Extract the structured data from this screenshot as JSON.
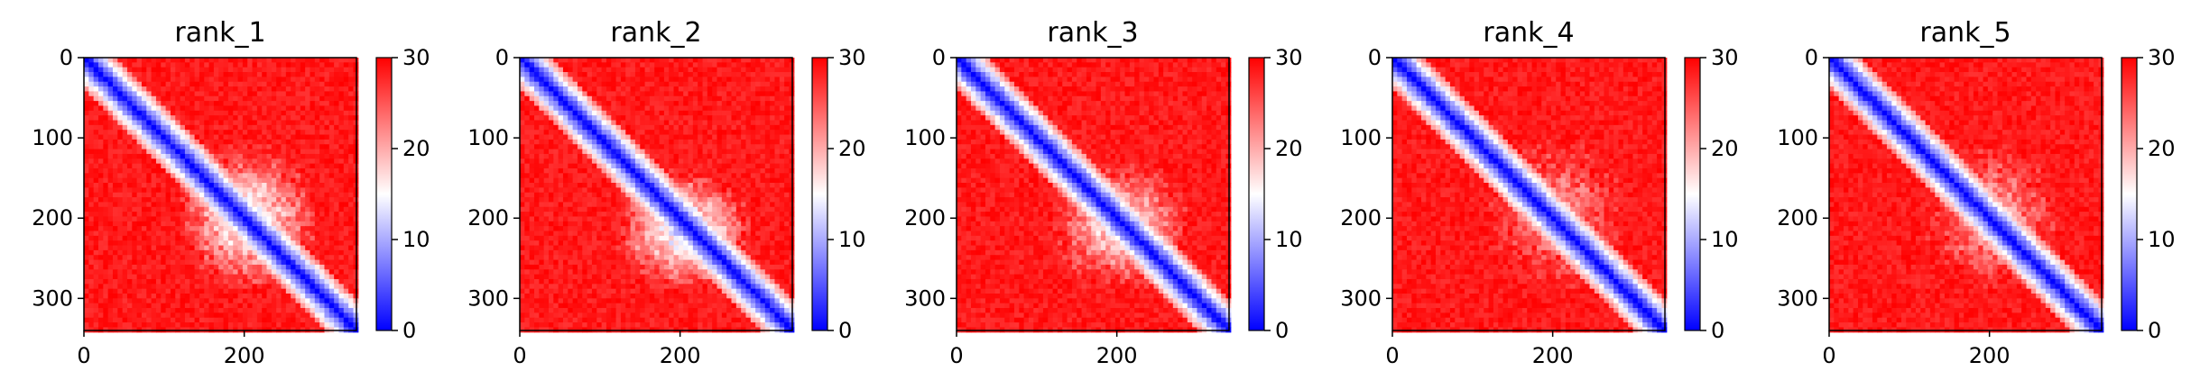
{
  "chart_data": [
    {
      "type": "heatmap",
      "title": "rank_1",
      "xticks": [
        "0",
        "200"
      ],
      "yticks": [
        "0",
        "100",
        "200",
        "300"
      ],
      "colorbar": {
        "ticks": [
          "0",
          "10",
          "20",
          "30"
        ],
        "range": [
          0,
          30
        ],
        "colormap": "bwr"
      },
      "n_residues": 340,
      "blue_region": {
        "x": [
          120,
          290
        ],
        "y": [
          110,
          290
        ],
        "strength": 0.75
      }
    },
    {
      "type": "heatmap",
      "title": "rank_2",
      "xticks": [
        "0",
        "200"
      ],
      "yticks": [
        "0",
        "100",
        "200",
        "300"
      ],
      "colorbar": {
        "ticks": [
          "0",
          "10",
          "20",
          "30"
        ],
        "range": [
          0,
          30
        ],
        "colormap": "bwr"
      },
      "n_residues": 340,
      "blue_region": {
        "x": [
          120,
          290
        ],
        "y": [
          140,
          290
        ],
        "strength": 0.8
      }
    },
    {
      "type": "heatmap",
      "title": "rank_3",
      "xticks": [
        "0",
        "200"
      ],
      "yticks": [
        "0",
        "100",
        "200",
        "300"
      ],
      "colorbar": {
        "ticks": [
          "0",
          "10",
          "20",
          "30"
        ],
        "range": [
          0,
          30
        ],
        "colormap": "bwr"
      },
      "n_residues": 340,
      "blue_region": {
        "x": [
          120,
          290
        ],
        "y": [
          130,
          290
        ],
        "strength": 0.65
      }
    },
    {
      "type": "heatmap",
      "title": "rank_4",
      "xticks": [
        "0",
        "200"
      ],
      "yticks": [
        "0",
        "100",
        "200",
        "300"
      ],
      "colorbar": {
        "ticks": [
          "0",
          "10",
          "20",
          "30"
        ],
        "range": [
          0,
          30
        ],
        "colormap": "bwr"
      },
      "n_residues": 340,
      "blue_region": {
        "x": [
          120,
          290
        ],
        "y": [
          100,
          290
        ],
        "strength": 0.45
      }
    },
    {
      "type": "heatmap",
      "title": "rank_5",
      "xticks": [
        "0",
        "200"
      ],
      "yticks": [
        "0",
        "100",
        "200",
        "300"
      ],
      "colorbar": {
        "ticks": [
          "0",
          "10",
          "20",
          "30"
        ],
        "range": [
          0,
          30
        ],
        "colormap": "bwr"
      },
      "n_residues": 340,
      "blue_region": {
        "x": [
          120,
          290
        ],
        "y": [
          110,
          290
        ],
        "strength": 0.5
      }
    }
  ]
}
